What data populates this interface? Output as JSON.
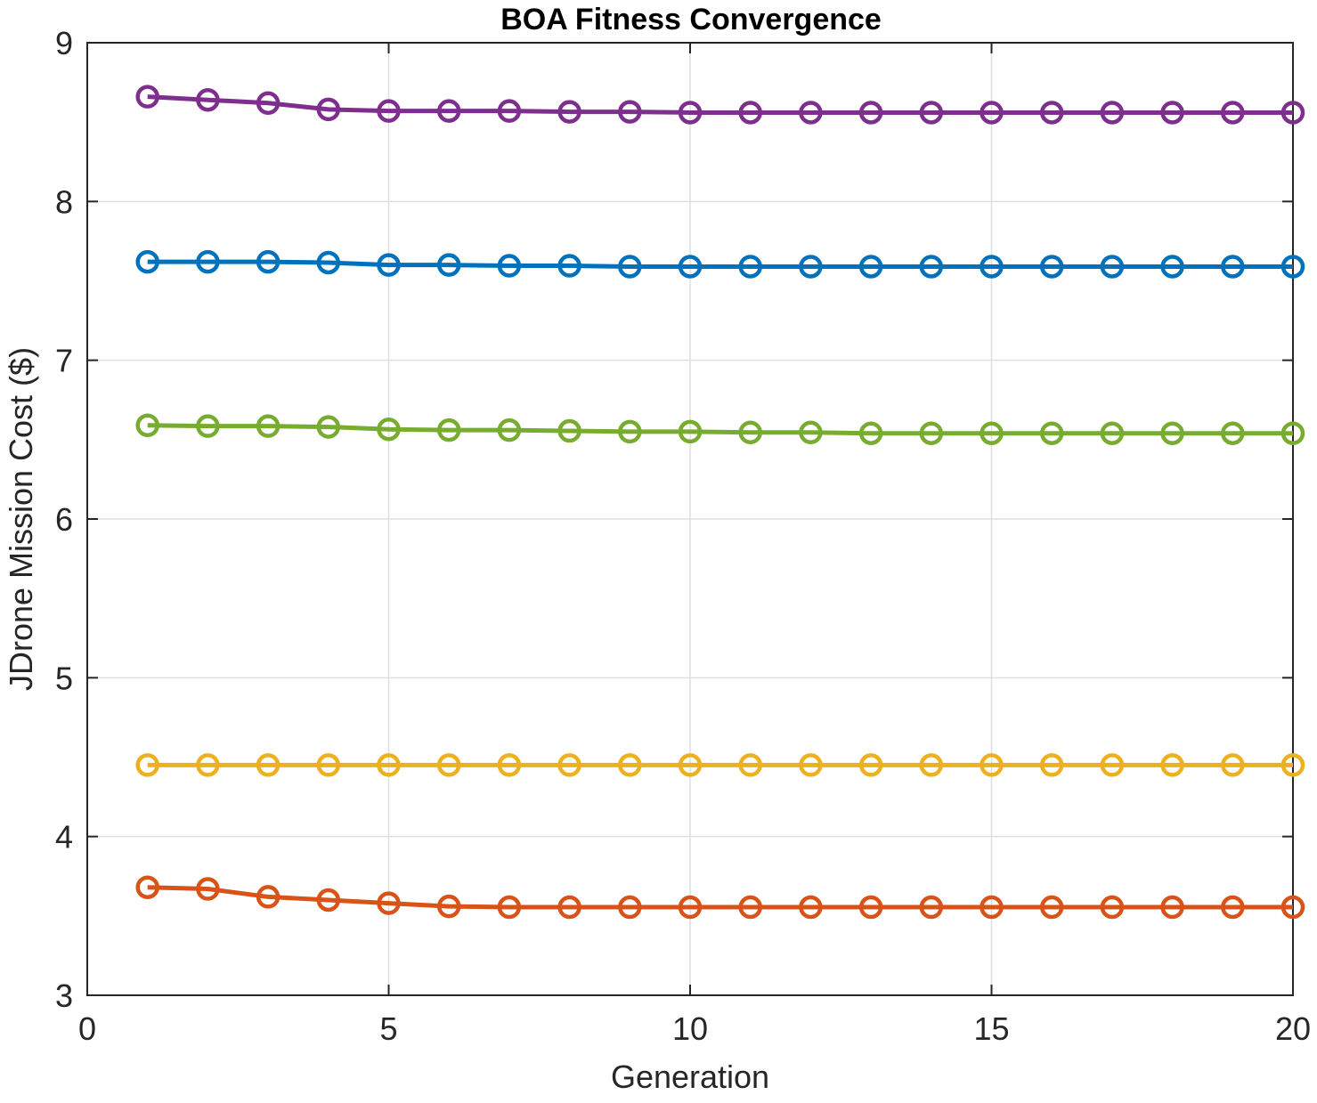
{
  "chart_data": {
    "type": "line",
    "title": "BOA Fitness Convergence",
    "xlabel": "Generation",
    "ylabel": "JDrone Mission Cost ($)",
    "xlim": [
      0,
      20
    ],
    "ylim": [
      3,
      9
    ],
    "xticks": [
      0,
      5,
      10,
      15,
      20
    ],
    "yticks": [
      3,
      4,
      5,
      6,
      7,
      8,
      9
    ],
    "grid": true,
    "marker": "circle",
    "x": [
      1,
      2,
      3,
      4,
      5,
      6,
      7,
      8,
      9,
      10,
      11,
      12,
      13,
      14,
      15,
      16,
      17,
      18,
      19,
      20
    ],
    "series": [
      {
        "color": "#7e2f8e",
        "values": [
          8.66,
          8.64,
          8.62,
          8.58,
          8.57,
          8.57,
          8.57,
          8.565,
          8.565,
          8.56,
          8.56,
          8.56,
          8.56,
          8.56,
          8.56,
          8.56,
          8.56,
          8.56,
          8.56,
          8.56
        ]
      },
      {
        "color": "#0072bd",
        "values": [
          7.62,
          7.62,
          7.62,
          7.615,
          7.6,
          7.6,
          7.595,
          7.595,
          7.59,
          7.59,
          7.59,
          7.59,
          7.59,
          7.59,
          7.59,
          7.59,
          7.59,
          7.59,
          7.59,
          7.59
        ]
      },
      {
        "color": "#77ac30",
        "values": [
          6.59,
          6.585,
          6.585,
          6.58,
          6.565,
          6.56,
          6.56,
          6.555,
          6.55,
          6.55,
          6.545,
          6.545,
          6.54,
          6.54,
          6.54,
          6.54,
          6.54,
          6.54,
          6.54,
          6.54
        ]
      },
      {
        "color": "#edb120",
        "values": [
          4.45,
          4.45,
          4.45,
          4.45,
          4.45,
          4.45,
          4.45,
          4.45,
          4.45,
          4.45,
          4.45,
          4.45,
          4.45,
          4.45,
          4.45,
          4.45,
          4.45,
          4.45,
          4.45,
          4.45
        ]
      },
      {
        "color": "#d95319",
        "values": [
          3.68,
          3.67,
          3.62,
          3.6,
          3.58,
          3.56,
          3.555,
          3.555,
          3.555,
          3.555,
          3.555,
          3.555,
          3.555,
          3.555,
          3.555,
          3.555,
          3.555,
          3.555,
          3.555,
          3.555
        ]
      }
    ]
  }
}
